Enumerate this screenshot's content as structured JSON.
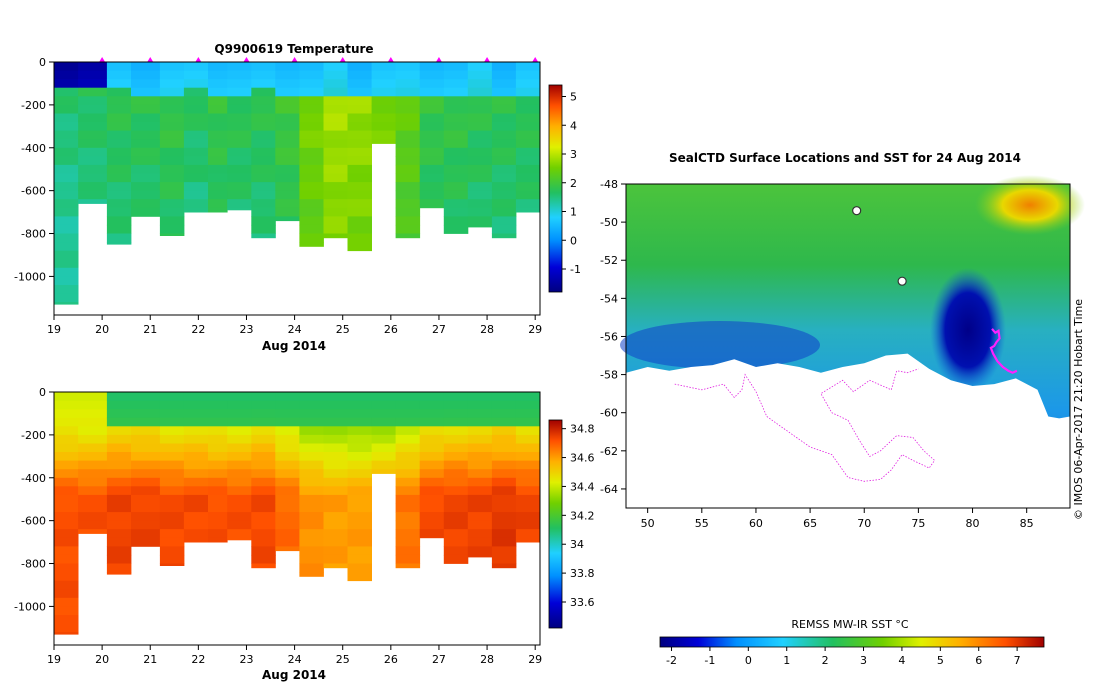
{
  "chart_data": [
    {
      "type": "heatmap",
      "title": "Q9900619  Temperature",
      "xlabel": "Aug 2014",
      "ylabel": "",
      "x_ticks": [
        "19",
        "20",
        "21",
        "22",
        "23",
        "24",
        "25",
        "26",
        "27",
        "28",
        "29"
      ],
      "y_ticks": [
        "0",
        "-200",
        "-400",
        "-600",
        "-800",
        "-1000"
      ],
      "xlim": [
        19,
        29.1
      ],
      "ylim": [
        -1180,
        0
      ],
      "colorbar_ticks": [
        "5",
        "4",
        "3",
        "2",
        "1",
        "0",
        "-1"
      ],
      "colorbar_range": [
        -1.8,
        5.4
      ],
      "profile_marker_days": [
        20,
        21,
        22,
        23,
        24,
        25,
        26,
        27,
        28,
        29
      ],
      "profiles": [
        {
          "day": 19.0,
          "max_depth": 1130,
          "upper": -1.5,
          "thermocline": 120,
          "deep": 1.6
        },
        {
          "day": 19.5,
          "max_depth": 660,
          "upper": -1.5,
          "thermocline": 120,
          "deep": 1.7
        },
        {
          "day": 20.1,
          "max_depth": 850,
          "upper": 0.4,
          "thermocline": 140,
          "deep": 1.8
        },
        {
          "day": 20.6,
          "max_depth": 720,
          "upper": 0.5,
          "thermocline": 150,
          "deep": 1.8
        },
        {
          "day": 21.2,
          "max_depth": 810,
          "upper": 0.6,
          "thermocline": 160,
          "deep": 1.9
        },
        {
          "day": 21.7,
          "max_depth": 700,
          "upper": 0.5,
          "thermocline": 140,
          "deep": 1.7
        },
        {
          "day": 22.2,
          "max_depth": 700,
          "upper": 0.6,
          "thermocline": 150,
          "deep": 1.9
        },
        {
          "day": 22.6,
          "max_depth": 690,
          "upper": 0.5,
          "thermocline": 160,
          "deep": 1.8
        },
        {
          "day": 23.1,
          "max_depth": 820,
          "upper": 0.4,
          "thermocline": 140,
          "deep": 1.8
        },
        {
          "day": 23.6,
          "max_depth": 740,
          "upper": 0.6,
          "thermocline": 160,
          "deep": 2.0
        },
        {
          "day": 24.1,
          "max_depth": 860,
          "upper": 0.5,
          "thermocline": 150,
          "deep": 2.6
        },
        {
          "day": 24.6,
          "max_depth": 820,
          "upper": 0.6,
          "thermocline": 160,
          "deep": 2.9
        },
        {
          "day": 25.1,
          "max_depth": 880,
          "upper": 0.5,
          "thermocline": 150,
          "deep": 2.8
        },
        {
          "day": 25.6,
          "max_depth": 380,
          "upper": 0.6,
          "thermocline": 160,
          "deep": 2.6
        },
        {
          "day": 26.1,
          "max_depth": 820,
          "upper": 0.5,
          "thermocline": 150,
          "deep": 2.4
        },
        {
          "day": 26.6,
          "max_depth": 680,
          "upper": 0.6,
          "thermocline": 160,
          "deep": 1.9
        },
        {
          "day": 27.1,
          "max_depth": 800,
          "upper": 0.5,
          "thermocline": 150,
          "deep": 1.9
        },
        {
          "day": 27.6,
          "max_depth": 770,
          "upper": 0.6,
          "thermocline": 160,
          "deep": 1.8
        },
        {
          "day": 28.1,
          "max_depth": 820,
          "upper": 0.5,
          "thermocline": 150,
          "deep": 1.8
        },
        {
          "day": 28.6,
          "max_depth": 700,
          "upper": 0.6,
          "thermocline": 150,
          "deep": 1.8
        }
      ]
    },
    {
      "type": "heatmap",
      "title": "",
      "xlabel": "Aug 2014",
      "ylabel": "",
      "x_ticks": [
        "19",
        "20",
        "21",
        "22",
        "23",
        "24",
        "25",
        "26",
        "27",
        "28",
        "29"
      ],
      "y_ticks": [
        "0",
        "-200",
        "-400",
        "-600",
        "-800",
        "-1000"
      ],
      "xlim": [
        19,
        29.1
      ],
      "ylim": [
        -1180,
        0
      ],
      "colorbar_ticks": [
        "34.8",
        "34.6",
        "34.4",
        "34.2",
        "34",
        "33.8",
        "33.6"
      ],
      "colorbar_range": [
        33.42,
        34.86
      ],
      "profiles": [
        {
          "day": 19.0,
          "max_depth": 1130,
          "upper": 34.4,
          "halocline": 170,
          "deep": 34.72
        },
        {
          "day": 19.5,
          "max_depth": 660,
          "upper": 34.4,
          "halocline": 170,
          "deep": 34.72
        },
        {
          "day": 20.1,
          "max_depth": 850,
          "upper": 34.1,
          "halocline": 160,
          "deep": 34.74
        },
        {
          "day": 20.6,
          "max_depth": 720,
          "upper": 34.1,
          "halocline": 160,
          "deep": 34.74
        },
        {
          "day": 21.2,
          "max_depth": 810,
          "upper": 34.1,
          "halocline": 170,
          "deep": 34.73
        },
        {
          "day": 21.7,
          "max_depth": 700,
          "upper": 34.1,
          "halocline": 170,
          "deep": 34.73
        },
        {
          "day": 22.2,
          "max_depth": 700,
          "upper": 34.1,
          "halocline": 170,
          "deep": 34.72
        },
        {
          "day": 22.6,
          "max_depth": 690,
          "upper": 34.1,
          "halocline": 170,
          "deep": 34.72
        },
        {
          "day": 23.1,
          "max_depth": 820,
          "upper": 34.1,
          "halocline": 160,
          "deep": 34.73
        },
        {
          "day": 23.6,
          "max_depth": 740,
          "upper": 34.1,
          "halocline": 170,
          "deep": 34.68
        },
        {
          "day": 24.1,
          "max_depth": 860,
          "upper": 34.1,
          "halocline": 170,
          "deep": 34.62
        },
        {
          "day": 24.6,
          "max_depth": 820,
          "upper": 34.1,
          "halocline": 170,
          "deep": 34.6
        },
        {
          "day": 25.1,
          "max_depth": 880,
          "upper": 34.1,
          "halocline": 170,
          "deep": 34.6
        },
        {
          "day": 25.6,
          "max_depth": 380,
          "upper": 34.1,
          "halocline": 170,
          "deep": 34.62
        },
        {
          "day": 26.1,
          "max_depth": 820,
          "upper": 34.1,
          "halocline": 170,
          "deep": 34.66
        },
        {
          "day": 26.6,
          "max_depth": 680,
          "upper": 34.1,
          "halocline": 170,
          "deep": 34.73
        },
        {
          "day": 27.1,
          "max_depth": 800,
          "upper": 34.1,
          "halocline": 160,
          "deep": 34.74
        },
        {
          "day": 27.6,
          "max_depth": 770,
          "upper": 34.1,
          "halocline": 160,
          "deep": 34.74
        },
        {
          "day": 28.1,
          "max_depth": 820,
          "upper": 34.1,
          "halocline": 160,
          "deep": 34.76
        },
        {
          "day": 28.6,
          "max_depth": 700,
          "upper": 34.1,
          "halocline": 160,
          "deep": 34.74
        }
      ]
    },
    {
      "type": "heatmap",
      "title": "SealCTD Surface Locations and SST for 24 Aug 2014",
      "xlabel": "",
      "ylabel": "",
      "x_ticks": [
        "50",
        "55",
        "60",
        "65",
        "70",
        "75",
        "80",
        "85"
      ],
      "y_ticks": [
        "-48",
        "-50",
        "-52",
        "-54",
        "-56",
        "-58",
        "-60",
        "-62",
        "-64"
      ],
      "xlim": [
        48,
        89
      ],
      "ylim": [
        -65,
        -48
      ],
      "colorbar_label": "REMSS MW-IR SST °C",
      "colorbar_ticks": [
        "-2",
        "-1",
        "0",
        "1",
        "2",
        "3",
        "4",
        "5",
        "6",
        "7"
      ],
      "colorbar_range": [
        -2.3,
        7.7
      ],
      "ice_edge_lat": [
        [
          48,
          -57.9
        ],
        [
          50,
          -57.6
        ],
        [
          52,
          -57.8
        ],
        [
          54,
          -57.6
        ],
        [
          56,
          -57.5
        ],
        [
          58,
          -57.2
        ],
        [
          60,
          -57.6
        ],
        [
          62,
          -57.4
        ],
        [
          64,
          -57.6
        ],
        [
          66,
          -57.9
        ],
        [
          68,
          -57.6
        ],
        [
          70,
          -57.4
        ],
        [
          72,
          -57.0
        ],
        [
          74,
          -56.9
        ],
        [
          76,
          -57.7
        ],
        [
          78,
          -58.3
        ],
        [
          80,
          -58.6
        ],
        [
          82,
          -58.5
        ],
        [
          84,
          -58.2
        ],
        [
          86,
          -58.8
        ],
        [
          87,
          -60.2
        ],
        [
          88,
          -60.3
        ],
        [
          89,
          -60.2
        ]
      ],
      "seal_track": [
        [
          81.8,
          -55.6
        ],
        [
          82.1,
          -55.8
        ],
        [
          82.4,
          -55.7
        ],
        [
          82.5,
          -56.1
        ],
        [
          82.2,
          -56.3
        ],
        [
          82.0,
          -56.5
        ],
        [
          81.7,
          -56.6
        ],
        [
          81.9,
          -56.9
        ],
        [
          82.3,
          -57.3
        ],
        [
          82.8,
          -57.6
        ],
        [
          83.3,
          -57.8
        ],
        [
          83.7,
          -57.9
        ],
        [
          84.1,
          -57.8
        ]
      ],
      "land_track": [
        [
          52.5,
          -58.5
        ],
        [
          55,
          -58.8
        ],
        [
          57,
          -58.5
        ],
        [
          58,
          -59.2
        ],
        [
          58.7,
          -58.8
        ],
        [
          59,
          -58
        ],
        [
          60,
          -58.9
        ],
        [
          61,
          -60.2
        ],
        [
          63,
          -61
        ],
        [
          65,
          -61.8
        ],
        [
          67,
          -62.2
        ],
        [
          68.5,
          -63.4
        ],
        [
          70,
          -63.6
        ],
        [
          71.5,
          -63.5
        ],
        [
          72.5,
          -63
        ],
        [
          73.5,
          -62.2
        ],
        [
          74.5,
          -62.5
        ],
        [
          76,
          -62.9
        ],
        [
          76.5,
          -62.5
        ],
        [
          75.5,
          -62
        ],
        [
          74.5,
          -61.3
        ],
        [
          73,
          -61.2
        ],
        [
          71.5,
          -62
        ],
        [
          70.5,
          -62.3
        ],
        [
          69.5,
          -61.4
        ],
        [
          68.5,
          -60.4
        ],
        [
          67,
          -60
        ],
        [
          66,
          -59
        ],
        [
          68,
          -58.3
        ],
        [
          69,
          -58.9
        ],
        [
          70.5,
          -58.3
        ],
        [
          72.5,
          -58.8
        ],
        [
          73,
          -57.8
        ],
        [
          74,
          -57.9
        ],
        [
          75,
          -57.7
        ]
      ],
      "islands": [
        [
          69.3,
          -49.4
        ],
        [
          73.5,
          -53.1
        ]
      ]
    }
  ],
  "watermark": "© IMOS 06-Apr-2017 21:20 Hobart Time"
}
